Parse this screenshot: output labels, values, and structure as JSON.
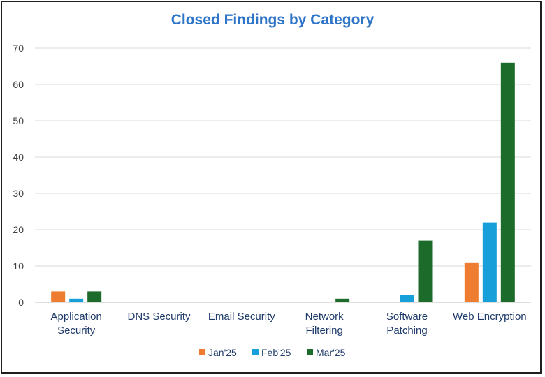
{
  "chart_data": {
    "type": "bar",
    "title": "Closed Findings by Category",
    "categories": [
      [
        "Application",
        "Security"
      ],
      [
        "DNS Security"
      ],
      [
        "Email Security"
      ],
      [
        "Network",
        "Filtering"
      ],
      [
        "Software",
        "Patching"
      ],
      [
        "Web Encryption"
      ]
    ],
    "series": [
      {
        "name": "Jan'25",
        "color": "#ee7d31",
        "values": [
          3,
          0,
          0,
          0,
          0,
          11
        ]
      },
      {
        "name": "Feb'25",
        "color": "#179fd9",
        "values": [
          1,
          0,
          0,
          0,
          2,
          22
        ]
      },
      {
        "name": "Mar'25",
        "color": "#1d6b2b",
        "values": [
          3,
          0,
          0,
          1,
          17,
          66
        ]
      }
    ],
    "ylim": [
      0,
      70
    ],
    "yticks": [
      0,
      10,
      20,
      30,
      40,
      50,
      60,
      70
    ],
    "grid": true,
    "legend": "bottom"
  }
}
